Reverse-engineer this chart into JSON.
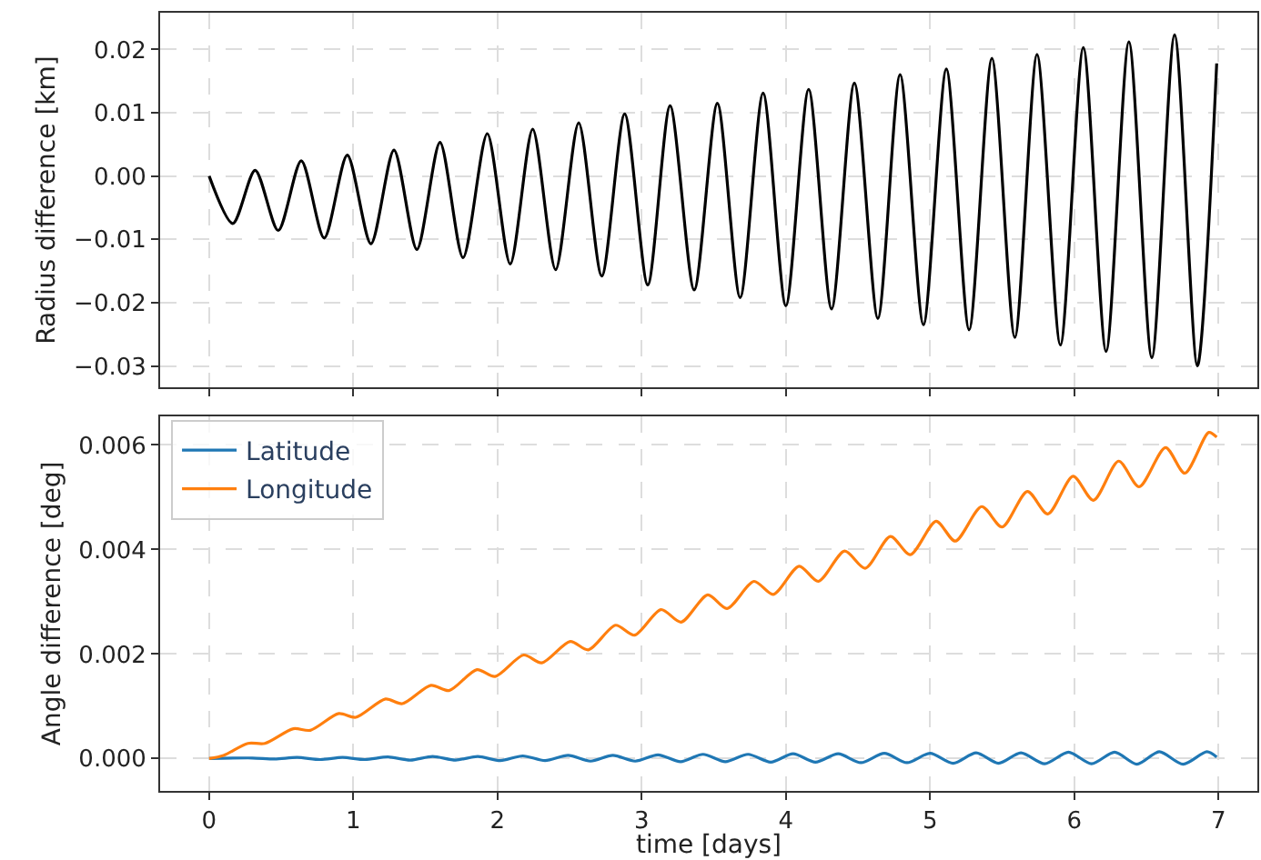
{
  "chart_data": [
    {
      "type": "line",
      "ylabel": "Radius difference [km]",
      "tick_labels": "y",
      "grid": true,
      "legend": false,
      "xlim": [
        -0.34,
        7.27
      ],
      "xticks": [
        0,
        1,
        2,
        3,
        4,
        5,
        6,
        7
      ],
      "ylim": [
        -0.0334,
        0.0258
      ],
      "yticks": [
        {
          "value": -0.03,
          "label": "−0.03"
        },
        {
          "value": -0.02,
          "label": "−0.02"
        },
        {
          "value": -0.01,
          "label": "−0.01"
        },
        {
          "value": 0.0,
          "label": "0.00"
        },
        {
          "value": 0.01,
          "label": "0.01"
        },
        {
          "value": 0.02,
          "label": "0.02"
        }
      ],
      "series": [
        {
          "color": "#000000",
          "x": [
            0,
            0.164,
            0.319,
            0.479,
            0.639,
            0.798,
            0.958,
            1.122,
            1.282,
            1.441,
            1.601,
            1.761,
            1.929,
            2.088,
            2.244,
            2.403,
            2.563,
            2.723,
            2.882,
            3.042,
            3.197,
            3.364,
            3.525,
            3.683,
            3.842,
            4.0,
            4.158,
            4.317,
            4.475,
            4.638,
            4.792,
            4.954,
            5.113,
            5.271,
            5.429,
            5.588,
            5.742,
            5.904,
            6.063,
            6.221,
            6.379,
            6.538,
            6.696,
            6.854,
            6.988
          ],
          "values": [
            0,
            -0.0075,
            0.0009,
            -0.0086,
            0.0024,
            -0.0098,
            0.0033,
            -0.0107,
            0.0041,
            -0.0116,
            0.0053,
            -0.0129,
            0.0067,
            -0.0139,
            0.0074,
            -0.0148,
            0.0084,
            -0.0158,
            0.0098,
            -0.0172,
            0.0111,
            -0.018,
            0.0115,
            -0.0192,
            0.0131,
            -0.0205,
            0.0137,
            -0.021,
            0.0147,
            -0.0225,
            0.016,
            -0.0235,
            0.0169,
            -0.0243,
            0.0186,
            -0.0255,
            0.0192,
            -0.0267,
            0.0203,
            -0.0277,
            0.0212,
            -0.0287,
            0.0223,
            -0.03,
            0.0178
          ]
        }
      ]
    },
    {
      "type": "line",
      "xlabel": "time [days]",
      "ylabel": "Angle difference [deg]",
      "grid": true,
      "legend": "top left",
      "xlim": [
        -0.34,
        7.27
      ],
      "xticks": [
        0,
        1,
        2,
        3,
        4,
        5,
        6,
        7
      ],
      "ylim": [
        -0.00062,
        0.00655
      ],
      "yticks": [
        {
          "value": 0.0,
          "label": "0.000"
        },
        {
          "value": 0.002,
          "label": "0.002"
        },
        {
          "value": 0.004,
          "label": "0.004"
        },
        {
          "value": 0.006,
          "label": "0.006"
        }
      ],
      "series": [
        {
          "name": "Latitude",
          "color": "#1f77b4",
          "x": [
            0,
            0.3,
            0.455,
            0.61,
            0.77,
            0.925,
            1.08,
            1.24,
            1.395,
            1.55,
            1.71,
            1.863,
            2.02,
            2.175,
            2.33,
            2.49,
            2.645,
            2.8,
            2.955,
            3.113,
            3.27,
            3.425,
            3.58,
            3.738,
            3.895,
            4.05,
            4.205,
            4.363,
            4.52,
            4.683,
            4.84,
            5.0,
            5.16,
            5.32,
            5.475,
            5.63,
            5.795,
            5.96,
            6.12,
            6.28,
            6.435,
            6.59,
            6.755,
            6.92,
            6.988
          ],
          "values": [
            0,
            1e-05,
            -1e-05,
            2e-05,
            -2e-05,
            2e-05,
            -2e-05,
            3e-05,
            -3e-05,
            4e-05,
            -3e-05,
            4e-05,
            -4e-05,
            5e-05,
            -4e-05,
            6e-05,
            -5e-05,
            6e-05,
            -5e-05,
            7e-05,
            -6e-05,
            8e-05,
            -6e-05,
            8e-05,
            -7e-05,
            9e-05,
            -7e-05,
            9e-05,
            -8e-05,
            0.0001,
            -8e-05,
            0.0001,
            -9e-05,
            0.00011,
            -9e-05,
            0.00011,
            -0.0001,
            0.00012,
            -0.0001,
            0.00012,
            -0.00011,
            0.00013,
            -0.00011,
            0.00013,
            3e-05
          ]
        },
        {
          "name": "Longitude",
          "color": "#ff7f0e",
          "x": [
            0,
            0.1,
            0.269,
            0.387,
            0.584,
            0.702,
            0.899,
            1.017,
            1.223,
            1.34,
            1.538,
            1.664,
            1.857,
            1.983,
            2.181,
            2.307,
            2.504,
            2.63,
            2.819,
            2.95,
            3.134,
            3.273,
            3.458,
            3.592,
            3.779,
            3.912,
            4.092,
            4.225,
            4.408,
            4.55,
            4.725,
            4.863,
            5.042,
            5.175,
            5.358,
            5.5,
            5.675,
            5.817,
            5.992,
            6.133,
            6.308,
            6.45,
            6.633,
            6.767,
            6.933,
            6.988
          ],
          "values": [
            0,
            6e-05,
            0.00029,
            0.00029,
            0.00057,
            0.00054,
            0.00086,
            0.00079,
            0.00114,
            0.00105,
            0.0014,
            0.0013,
            0.0017,
            0.00157,
            0.00198,
            0.00183,
            0.00224,
            0.00208,
            0.00255,
            0.00236,
            0.00285,
            0.00261,
            0.00313,
            0.00287,
            0.00339,
            0.00314,
            0.00368,
            0.00339,
            0.00397,
            0.00364,
            0.00425,
            0.0039,
            0.00454,
            0.00416,
            0.00482,
            0.00443,
            0.00511,
            0.00468,
            0.0054,
            0.00494,
            0.00569,
            0.0052,
            0.00595,
            0.00546,
            0.00624,
            0.00615
          ]
        }
      ]
    }
  ]
}
